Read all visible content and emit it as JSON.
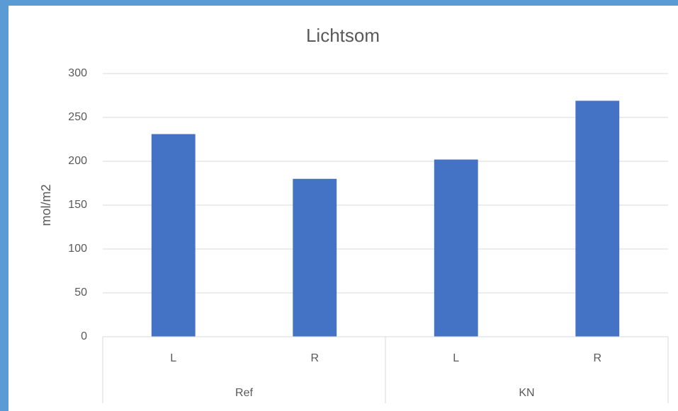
{
  "chart_data": {
    "type": "bar",
    "title": "Lichtsom",
    "y_label": "mol/m2",
    "categories": [
      "L",
      "R",
      "L",
      "R"
    ],
    "groups": [
      "Ref",
      "KN"
    ],
    "values": [
      231,
      180,
      202,
      269
    ],
    "color": "#4472c4",
    "ylim": [
      0,
      300
    ],
    "yticks": [
      0,
      50,
      100,
      150,
      200,
      250,
      300
    ],
    "grid": true
  }
}
